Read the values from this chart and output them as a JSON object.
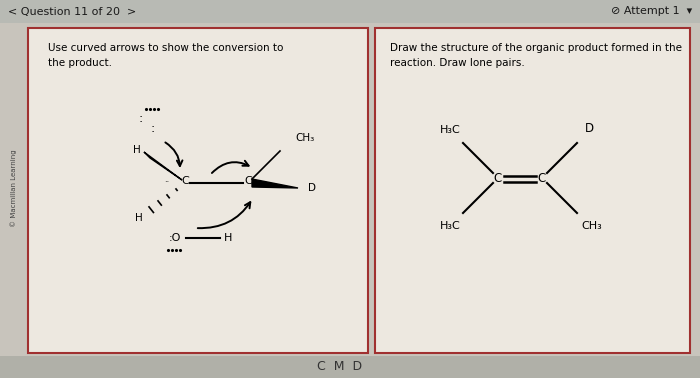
{
  "bg_color": "#c8c4bc",
  "header_bg": "#b8bab4",
  "header_text": "< Question 11 of 20  >",
  "attempt_text": "⊘ Attempt 1  ▾",
  "left_title1": "Use curved arrows to show the conversion to",
  "left_title2": "the product.",
  "right_title1": "Draw the structure of the organic product formed in the",
  "right_title2": "reaction. Draw lone pairs.",
  "panel_bg": "#ede8e0",
  "panel_border": "#a03030",
  "copyright": "© Macmillan Learning",
  "bottom_bar_color": "#b0b0a8"
}
